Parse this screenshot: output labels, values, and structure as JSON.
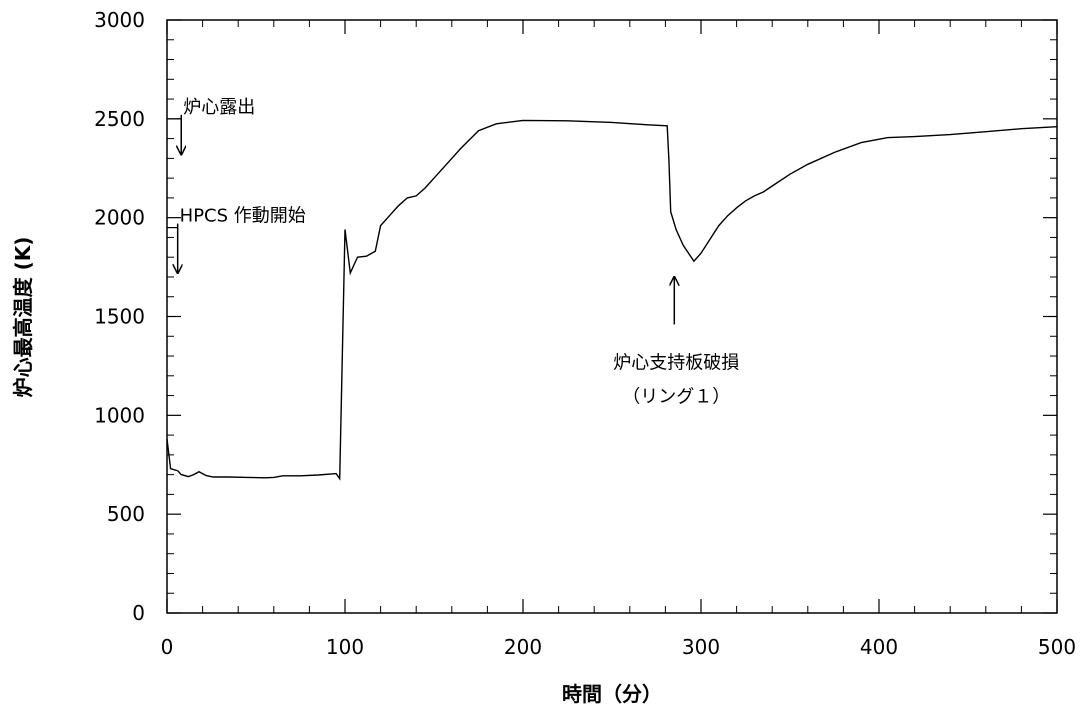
{
  "chart_data": {
    "type": "line",
    "title": "",
    "xlabel": "時間（分）",
    "ylabel": "炉心最高温度 (K)",
    "xlim": [
      0,
      500
    ],
    "ylim": [
      0,
      3000
    ],
    "x_ticks": [
      "0",
      "100",
      "200",
      "300",
      "400",
      "500"
    ],
    "y_ticks": [
      "0",
      "500",
      "1000",
      "1500",
      "2000",
      "2500",
      "3000"
    ],
    "x_tick_values": [
      0,
      100,
      200,
      300,
      400,
      500
    ],
    "y_tick_values": [
      0,
      500,
      1000,
      1500,
      2000,
      2500,
      3000
    ],
    "x_minor_step": 20,
    "y_minor_step": 100,
    "grid": false,
    "series": [
      {
        "color": "#000000",
        "points": [
          [
            0,
            880
          ],
          [
            2,
            730
          ],
          [
            6,
            720
          ],
          [
            8,
            700
          ],
          [
            12,
            690
          ],
          [
            15,
            700
          ],
          [
            18,
            715
          ],
          [
            22,
            695
          ],
          [
            26,
            688
          ],
          [
            35,
            688
          ],
          [
            45,
            686
          ],
          [
            55,
            684
          ],
          [
            60,
            686
          ],
          [
            65,
            694
          ],
          [
            75,
            694
          ],
          [
            85,
            698
          ],
          [
            95,
            705
          ],
          [
            97,
            680
          ],
          [
            100,
            1940
          ],
          [
            103,
            1720
          ],
          [
            107,
            1800
          ],
          [
            112,
            1805
          ],
          [
            117,
            1830
          ],
          [
            120,
            1960
          ],
          [
            125,
            2010
          ],
          [
            130,
            2060
          ],
          [
            135,
            2100
          ],
          [
            140,
            2110
          ],
          [
            145,
            2150
          ],
          [
            155,
            2250
          ],
          [
            165,
            2350
          ],
          [
            175,
            2440
          ],
          [
            185,
            2475
          ],
          [
            200,
            2492
          ],
          [
            225,
            2490
          ],
          [
            250,
            2482
          ],
          [
            270,
            2470
          ],
          [
            281,
            2465
          ],
          [
            282,
            2280
          ],
          [
            283,
            2030
          ],
          [
            286,
            1940
          ],
          [
            290,
            1860
          ],
          [
            296,
            1780
          ],
          [
            300,
            1820
          ],
          [
            305,
            1890
          ],
          [
            310,
            1960
          ],
          [
            315,
            2010
          ],
          [
            320,
            2050
          ],
          [
            325,
            2085
          ],
          [
            330,
            2110
          ],
          [
            335,
            2130
          ],
          [
            340,
            2160
          ],
          [
            350,
            2220
          ],
          [
            360,
            2270
          ],
          [
            375,
            2330
          ],
          [
            390,
            2380
          ],
          [
            405,
            2405
          ],
          [
            420,
            2410
          ],
          [
            440,
            2420
          ],
          [
            460,
            2435
          ],
          [
            480,
            2450
          ],
          [
            500,
            2460
          ]
        ]
      }
    ],
    "annotations": [
      {
        "text": "炉心露出",
        "arrow_x": 8,
        "arrow_from_y": 2520,
        "arrow_to_y": 2320
      },
      {
        "text": "HPCS 作動開始",
        "arrow_x": 6,
        "arrow_from_y": 1970,
        "arrow_to_y": 1720
      },
      {
        "text": "炉心支持板破損",
        "text2": "（リング１）",
        "arrow_x": 285,
        "arrow_from_y": 1460,
        "arrow_to_y": 1700
      }
    ]
  }
}
